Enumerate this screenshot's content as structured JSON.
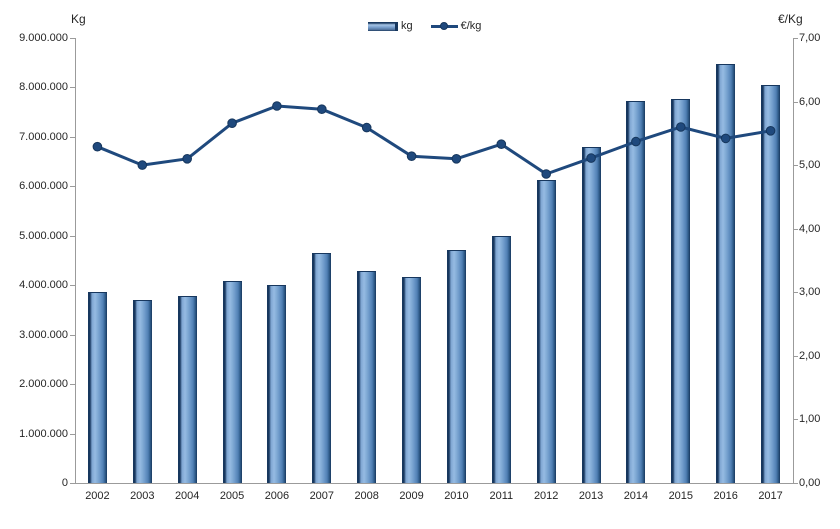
{
  "chart_data": {
    "type": "bar+line combo",
    "title": "",
    "categories": [
      "2002",
      "2003",
      "2004",
      "2005",
      "2006",
      "2007",
      "2008",
      "2009",
      "2010",
      "2011",
      "2012",
      "2013",
      "2014",
      "2015",
      "2016",
      "2017"
    ],
    "series": [
      {
        "name": "kg",
        "type": "bar",
        "axis": "left",
        "values": [
          3870000,
          3700000,
          3780000,
          4080000,
          4010000,
          4650000,
          4280000,
          4170000,
          4720000,
          5000000,
          6130000,
          6790000,
          7720000,
          7770000,
          8480000,
          8050000
        ]
      },
      {
        "name": "€/kg",
        "type": "line",
        "axis": "right",
        "values": [
          5.29,
          5.0,
          5.1,
          5.66,
          5.93,
          5.88,
          5.59,
          5.14,
          5.1,
          5.33,
          4.86,
          5.11,
          5.37,
          5.6,
          5.42,
          5.54
        ]
      }
    ],
    "left_axis": {
      "label": "Kg",
      "min": 0,
      "max": 9000000,
      "step": 1000000,
      "tick_labels": [
        "0",
        "1.000.000",
        "2.000.000",
        "3.000.000",
        "4.000.000",
        "5.000.000",
        "6.000.000",
        "7.000.000",
        "8.000.000",
        "9.000.000"
      ]
    },
    "right_axis": {
      "label": "€/Kg",
      "min": 0,
      "max": 7,
      "step": 1,
      "tick_labels": [
        "0,00",
        "1,00",
        "2,00",
        "3,00",
        "4,00",
        "5,00",
        "6,00",
        "7,00"
      ]
    },
    "legend_position": "top-center",
    "grid": false,
    "colors": {
      "bar_fill": "#6d99c9",
      "bar_highlight": "#95bae2",
      "bar_edge": "#17375e",
      "line": "#1f497d",
      "marker": "#1f497d",
      "axis": "#9b9b9b",
      "text": "#262626",
      "background": "#ffffff"
    }
  }
}
